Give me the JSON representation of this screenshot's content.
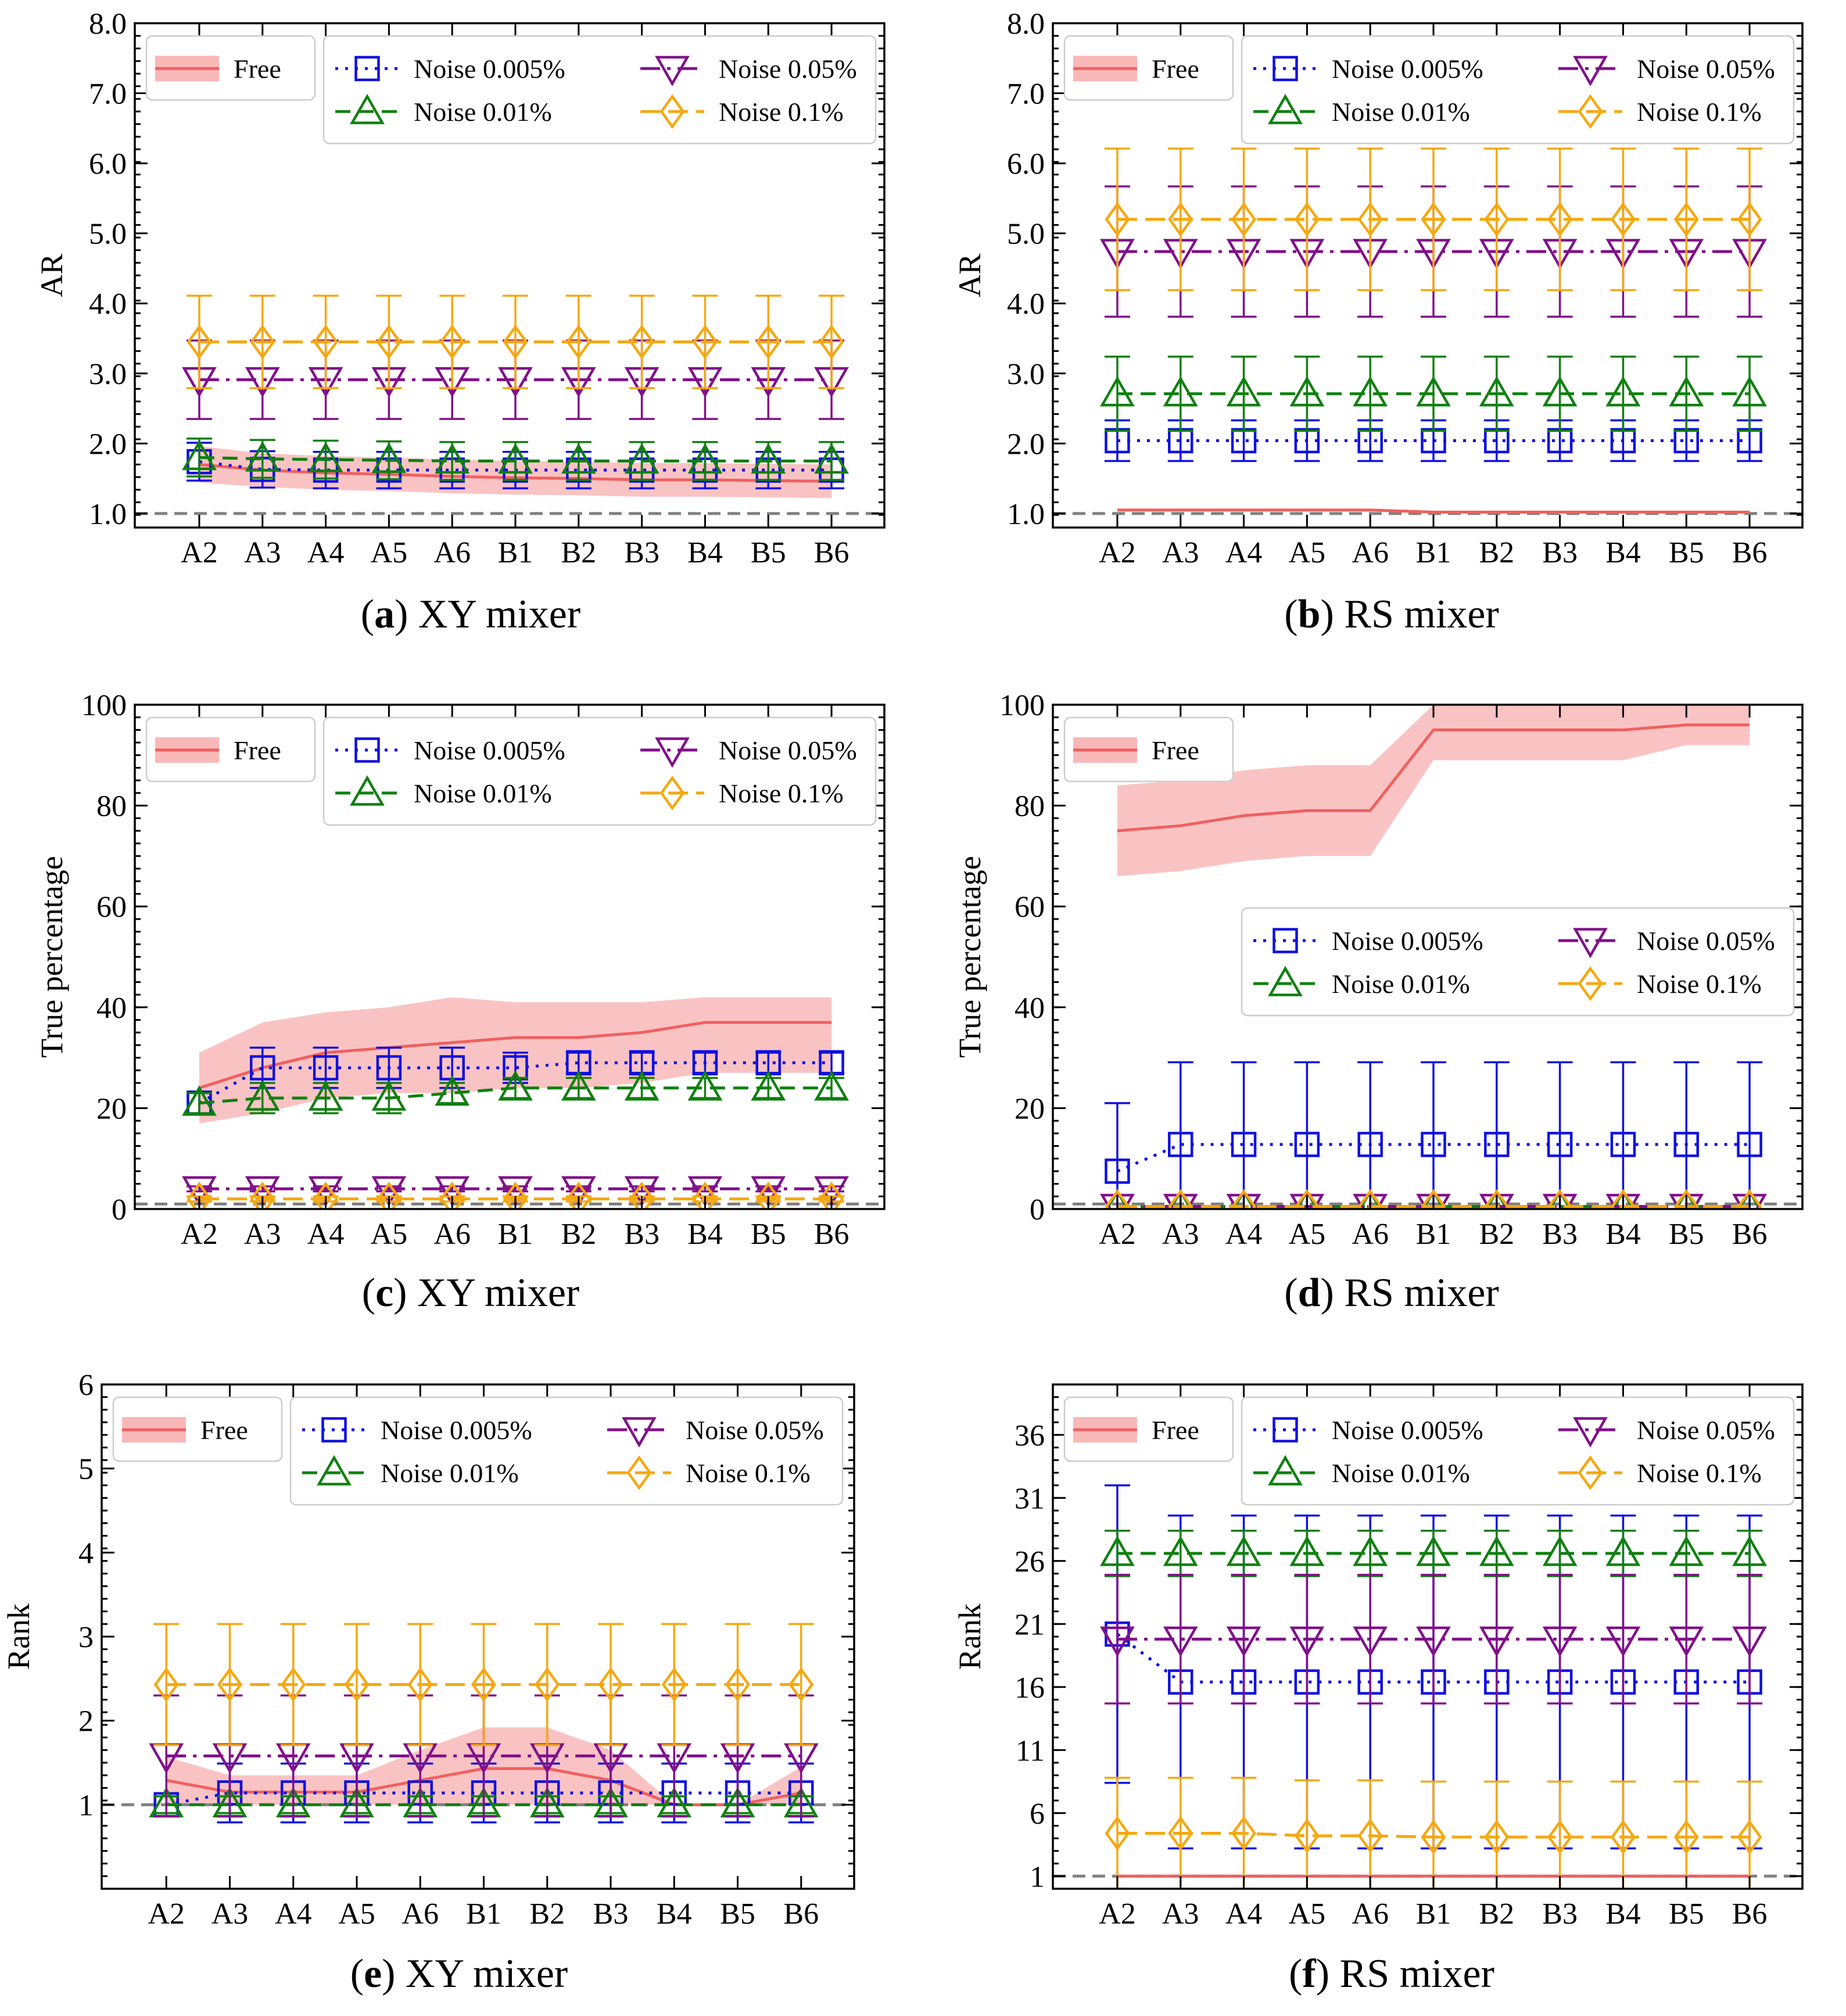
{
  "figure": {
    "x_categories": [
      "A2",
      "A3",
      "A4",
      "A5",
      "A6",
      "B1",
      "B2",
      "B3",
      "B4",
      "B5",
      "B6"
    ],
    "legend_labels": {
      "free": "Free",
      "n0005": "Noise 0.005%",
      "n001": "Noise 0.01%",
      "n005": "Noise 0.05%",
      "n01": "Noise 0.1%"
    },
    "colors": {
      "free": "#f06060",
      "free_band": "#f9b8b8",
      "n0005": "#1010e0",
      "n001": "#108010",
      "n005": "#80108a",
      "n01": "#f5a810"
    }
  },
  "chart_data": [
    {
      "id": "a",
      "type": "line",
      "caption_letter": "a",
      "caption_text": "XY mixer",
      "ylabel": "AR",
      "ylim": [
        0.8,
        8.0
      ],
      "yticks": [
        "1.0",
        "2.0",
        "3.0",
        "4.0",
        "5.0",
        "6.0",
        "7.0",
        "8.0"
      ],
      "reference_line": 1.0,
      "free": {
        "mean": [
          1.7,
          1.62,
          1.58,
          1.56,
          1.53,
          1.51,
          1.5,
          1.48,
          1.48,
          1.47,
          1.46
        ],
        "low": [
          1.44,
          1.38,
          1.34,
          1.32,
          1.29,
          1.27,
          1.26,
          1.24,
          1.24,
          1.23,
          1.22
        ],
        "high": [
          1.96,
          1.86,
          1.82,
          1.8,
          1.77,
          1.75,
          1.74,
          1.72,
          1.72,
          1.71,
          1.7
        ]
      },
      "series": [
        {
          "key": "n0005",
          "values": [
            1.74,
            1.63,
            1.62,
            1.62,
            1.62,
            1.62,
            1.62,
            1.62,
            1.62,
            1.62,
            1.62
          ],
          "err": [
            0.27,
            0.26,
            0.26,
            0.26,
            0.26,
            0.26,
            0.26,
            0.26,
            0.26,
            0.26,
            0.26
          ]
        },
        {
          "key": "n001",
          "values": [
            1.8,
            1.78,
            1.77,
            1.76,
            1.75,
            1.75,
            1.75,
            1.75,
            1.75,
            1.75,
            1.75
          ],
          "err": [
            0.27,
            0.27,
            0.27,
            0.27,
            0.27,
            0.27,
            0.27,
            0.27,
            0.27,
            0.27,
            0.27
          ]
        },
        {
          "key": "n005",
          "values": [
            2.91,
            2.91,
            2.91,
            2.91,
            2.91,
            2.91,
            2.91,
            2.91,
            2.91,
            2.91,
            2.91
          ],
          "err": [
            0.56,
            0.56,
            0.56,
            0.56,
            0.56,
            0.56,
            0.56,
            0.56,
            0.56,
            0.56,
            0.56
          ]
        },
        {
          "key": "n01",
          "values": [
            3.45,
            3.45,
            3.45,
            3.45,
            3.45,
            3.45,
            3.45,
            3.45,
            3.45,
            3.45,
            3.45
          ],
          "err": [
            0.66,
            0.66,
            0.66,
            0.66,
            0.66,
            0.66,
            0.66,
            0.66,
            0.66,
            0.66,
            0.66
          ]
        }
      ],
      "legend_layout": "top",
      "legend_has_free": true
    },
    {
      "id": "b",
      "type": "line",
      "caption_letter": "b",
      "caption_text": "RS mixer",
      "ylabel": "AR",
      "ylim": [
        0.8,
        8.0
      ],
      "yticks": [
        "1.0",
        "2.0",
        "3.0",
        "4.0",
        "5.0",
        "6.0",
        "7.0",
        "8.0"
      ],
      "reference_line": 1.0,
      "free": {
        "mean": [
          1.05,
          1.05,
          1.05,
          1.05,
          1.05,
          1.02,
          1.02,
          1.02,
          1.02,
          1.02,
          1.02
        ],
        "low": [
          1.03,
          1.03,
          1.03,
          1.03,
          1.03,
          1.01,
          1.01,
          1.01,
          1.01,
          1.01,
          1.01
        ],
        "high": [
          1.07,
          1.07,
          1.07,
          1.07,
          1.07,
          1.03,
          1.03,
          1.03,
          1.03,
          1.03,
          1.03
        ]
      },
      "series": [
        {
          "key": "n0005",
          "values": [
            2.04,
            2.04,
            2.04,
            2.04,
            2.04,
            2.04,
            2.04,
            2.04,
            2.04,
            2.04,
            2.04
          ],
          "err": [
            0.29,
            0.29,
            0.29,
            0.29,
            0.29,
            0.29,
            0.29,
            0.29,
            0.29,
            0.29,
            0.29
          ]
        },
        {
          "key": "n001",
          "values": [
            2.71,
            2.71,
            2.71,
            2.71,
            2.71,
            2.71,
            2.71,
            2.71,
            2.71,
            2.71,
            2.71
          ],
          "err": [
            0.53,
            0.53,
            0.53,
            0.53,
            0.53,
            0.53,
            0.53,
            0.53,
            0.53,
            0.53,
            0.53
          ]
        },
        {
          "key": "n005",
          "values": [
            4.74,
            4.74,
            4.74,
            4.74,
            4.74,
            4.74,
            4.74,
            4.74,
            4.74,
            4.74,
            4.74
          ],
          "err": [
            0.93,
            0.93,
            0.93,
            0.93,
            0.93,
            0.93,
            0.93,
            0.93,
            0.93,
            0.93,
            0.93
          ]
        },
        {
          "key": "n01",
          "values": [
            5.2,
            5.2,
            5.2,
            5.2,
            5.2,
            5.2,
            5.2,
            5.2,
            5.2,
            5.2,
            5.2
          ],
          "err": [
            1.01,
            1.01,
            1.01,
            1.01,
            1.01,
            1.01,
            1.01,
            1.01,
            1.01,
            1.01,
            1.01
          ]
        }
      ],
      "legend_layout": "top",
      "legend_has_free": true
    },
    {
      "id": "c",
      "type": "line",
      "caption_letter": "c",
      "caption_text": "XY mixer",
      "ylabel": "True percentage",
      "ylim": [
        0,
        100
      ],
      "yticks": [
        "0",
        "20",
        "40",
        "60",
        "80",
        "100"
      ],
      "reference_line": 1,
      "free": {
        "mean": [
          24,
          28,
          31,
          32,
          33,
          34,
          34,
          35,
          37,
          37,
          37
        ],
        "low": [
          17,
          19,
          22,
          23,
          23,
          24,
          24,
          25,
          27,
          27,
          27
        ],
        "high": [
          31,
          37,
          39,
          40,
          42,
          41,
          41,
          41,
          42,
          42,
          42
        ]
      },
      "series": [
        {
          "key": "n0005",
          "values": [
            21,
            28,
            28,
            28,
            28,
            28,
            29,
            29,
            29,
            29,
            29
          ],
          "err": [
            2,
            4,
            4,
            4,
            4,
            3,
            2,
            2,
            2,
            2,
            2
          ]
        },
        {
          "key": "n001",
          "values": [
            21,
            22,
            22,
            22,
            23,
            24,
            24,
            24,
            24,
            24,
            24
          ],
          "err": [
            2,
            3,
            3,
            3,
            2,
            2,
            2,
            2,
            2,
            2,
            2
          ]
        },
        {
          "key": "n005",
          "values": [
            4,
            4,
            4,
            4,
            4,
            4,
            4,
            4,
            4,
            4,
            4
          ],
          "err": [
            0.5,
            0.5,
            0.5,
            0.5,
            0.5,
            0.5,
            0.5,
            0.5,
            0.5,
            0.5,
            0.5
          ]
        },
        {
          "key": "n01",
          "values": [
            2,
            2,
            2,
            2,
            2,
            2,
            2,
            2,
            2,
            2,
            2
          ],
          "err": [
            0.5,
            0.5,
            0.5,
            0.5,
            0.5,
            0.5,
            0.5,
            0.5,
            0.5,
            0.5,
            0.5
          ]
        }
      ],
      "legend_layout": "top",
      "legend_has_free": true
    },
    {
      "id": "d",
      "type": "line",
      "caption_letter": "d",
      "caption_text": "RS mixer",
      "ylabel": "True percentage",
      "ylim": [
        0,
        100
      ],
      "yticks": [
        "0",
        "20",
        "40",
        "60",
        "80",
        "100"
      ],
      "reference_line": 1,
      "free": {
        "mean": [
          75,
          76,
          78,
          79,
          79,
          95,
          95,
          95,
          95,
          96,
          96
        ],
        "low": [
          66,
          67,
          69,
          70,
          70,
          89,
          89,
          89,
          89,
          92,
          92
        ],
        "high": [
          84,
          85,
          87,
          88,
          88,
          100,
          100,
          100,
          100,
          100,
          100
        ]
      },
      "series": [
        {
          "key": "n0005",
          "values": [
            7.5,
            12.8,
            12.8,
            12.8,
            12.8,
            12.8,
            12.8,
            12.8,
            12.8,
            12.8,
            12.8
          ],
          "err": [
            13.5,
            16.3,
            16.3,
            16.3,
            16.3,
            16.3,
            16.3,
            16.3,
            16.3,
            16.3,
            16.3
          ]
        },
        {
          "key": "n001",
          "values": [
            0.5,
            0.5,
            0.5,
            0.5,
            0.5,
            0.5,
            0.5,
            0.5,
            0.5,
            0.5,
            0.5
          ],
          "err": [
            0,
            0,
            0,
            0,
            0,
            0,
            0,
            0,
            0,
            0,
            0
          ]
        },
        {
          "key": "n005",
          "values": [
            0.5,
            0.5,
            0.5,
            0.5,
            0.5,
            0.5,
            0.5,
            0.5,
            0.5,
            0.5,
            0.5
          ],
          "err": [
            0,
            0,
            0,
            0,
            0,
            0,
            0,
            0,
            0,
            0,
            0
          ]
        },
        {
          "key": "n01",
          "values": [
            0.5,
            0.5,
            0.5,
            0.5,
            0.5,
            0.5,
            0.5,
            0.5,
            0.5,
            0.5,
            0.5
          ],
          "err": [
            0,
            0,
            0,
            0,
            0,
            0,
            0,
            0,
            0,
            0,
            0
          ]
        }
      ],
      "legend_layout": "middle",
      "legend_has_free": true
    },
    {
      "id": "e",
      "type": "line",
      "caption_letter": "e",
      "caption_text": "XY mixer",
      "ylabel": "Rank",
      "ylim": [
        0,
        6
      ],
      "yticks": [
        "1",
        "2",
        "3",
        "4",
        "5",
        "6"
      ],
      "ytick_values": [
        1,
        2,
        3,
        4,
        5,
        6
      ],
      "reference_line": 1,
      "free": {
        "mean": [
          1.29,
          1.15,
          1.15,
          1.15,
          1.29,
          1.43,
          1.43,
          1.29,
          1.0,
          1.0,
          1.14
        ],
        "low": [
          1.0,
          1.0,
          1.0,
          1.0,
          1.0,
          1.0,
          1.0,
          1.0,
          1.0,
          1.0,
          1.0
        ],
        "high": [
          1.57,
          1.35,
          1.35,
          1.35,
          1.65,
          1.92,
          1.92,
          1.65,
          1.0,
          1.0,
          1.45
        ]
      },
      "series": [
        {
          "key": "n0005",
          "values": [
            1.0,
            1.14,
            1.14,
            1.14,
            1.14,
            1.14,
            1.14,
            1.14,
            1.14,
            1.14,
            1.14
          ],
          "err": [
            0.1,
            0.35,
            0.35,
            0.35,
            0.35,
            0.35,
            0.35,
            0.35,
            0.35,
            0.35,
            0.35
          ]
        },
        {
          "key": "n001",
          "values": [
            1.0,
            1.0,
            1.0,
            1.0,
            1.0,
            1.0,
            1.0,
            1.0,
            1.0,
            1.0,
            1.0
          ],
          "err": [
            0.1,
            0.1,
            0.1,
            0.1,
            0.1,
            0.1,
            0.1,
            0.1,
            0.1,
            0.1,
            0.1
          ]
        },
        {
          "key": "n005",
          "values": [
            1.58,
            1.58,
            1.58,
            1.58,
            1.58,
            1.58,
            1.58,
            1.58,
            1.58,
            1.58,
            1.58
          ],
          "err": [
            0.72,
            0.72,
            0.72,
            0.72,
            0.72,
            0.72,
            0.72,
            0.72,
            0.72,
            0.72,
            0.72
          ]
        },
        {
          "key": "n01",
          "values": [
            2.43,
            2.43,
            2.43,
            2.43,
            2.43,
            2.43,
            2.43,
            2.43,
            2.43,
            2.43,
            2.43
          ],
          "err": [
            0.72,
            0.72,
            0.72,
            0.72,
            0.72,
            0.72,
            0.72,
            0.72,
            0.72,
            0.72,
            0.72
          ]
        }
      ],
      "legend_layout": "top",
      "legend_has_free": true
    },
    {
      "id": "f",
      "type": "line",
      "caption_letter": "f",
      "caption_text": "RS mixer",
      "ylabel": "Rank",
      "ylim": [
        0,
        40
      ],
      "yticks": [
        "1",
        "6",
        "11",
        "16",
        "21",
        "26",
        "31",
        "36"
      ],
      "ytick_values": [
        1,
        6,
        11,
        16,
        21,
        26,
        31,
        36
      ],
      "reference_line": 1,
      "free": {
        "mean": [
          1,
          1,
          1,
          1,
          1,
          1,
          1,
          1,
          1,
          1,
          1
        ],
        "low": [
          1,
          1,
          1,
          1,
          1,
          1,
          1,
          1,
          1,
          1,
          1
        ],
        "high": [
          1,
          1,
          1,
          1,
          1,
          1,
          1,
          1,
          1,
          1,
          1
        ]
      },
      "series": [
        {
          "key": "n0005",
          "values": [
            20.2,
            16.4,
            16.4,
            16.4,
            16.4,
            16.4,
            16.4,
            16.4,
            16.4,
            16.4,
            16.4
          ],
          "err": [
            11.8,
            13.2,
            13.2,
            13.2,
            13.2,
            13.2,
            13.2,
            13.2,
            13.2,
            13.2,
            13.2
          ]
        },
        {
          "key": "n001",
          "values": [
            26.6,
            26.6,
            26.6,
            26.6,
            26.6,
            26.6,
            26.6,
            26.6,
            26.6,
            26.6,
            26.6
          ],
          "err": [
            1.8,
            1.8,
            1.8,
            1.8,
            1.8,
            1.8,
            1.8,
            1.8,
            1.8,
            1.8,
            1.8
          ]
        },
        {
          "key": "n005",
          "values": [
            19.8,
            19.8,
            19.8,
            19.8,
            19.8,
            19.8,
            19.8,
            19.8,
            19.8,
            19.8,
            19.8
          ],
          "err": [
            5.1,
            5.1,
            5.1,
            5.1,
            5.1,
            5.1,
            5.1,
            5.1,
            5.1,
            5.1,
            5.1
          ]
        },
        {
          "key": "n01",
          "values": [
            4.4,
            4.4,
            4.4,
            4.2,
            4.2,
            4.1,
            4.1,
            4.1,
            4.1,
            4.1,
            4.1
          ],
          "err": [
            4.4,
            4.4,
            4.4,
            4.4,
            4.4,
            4.4,
            4.4,
            4.4,
            4.4,
            4.4,
            4.4
          ]
        }
      ],
      "legend_layout": "top",
      "legend_has_free": true
    }
  ]
}
